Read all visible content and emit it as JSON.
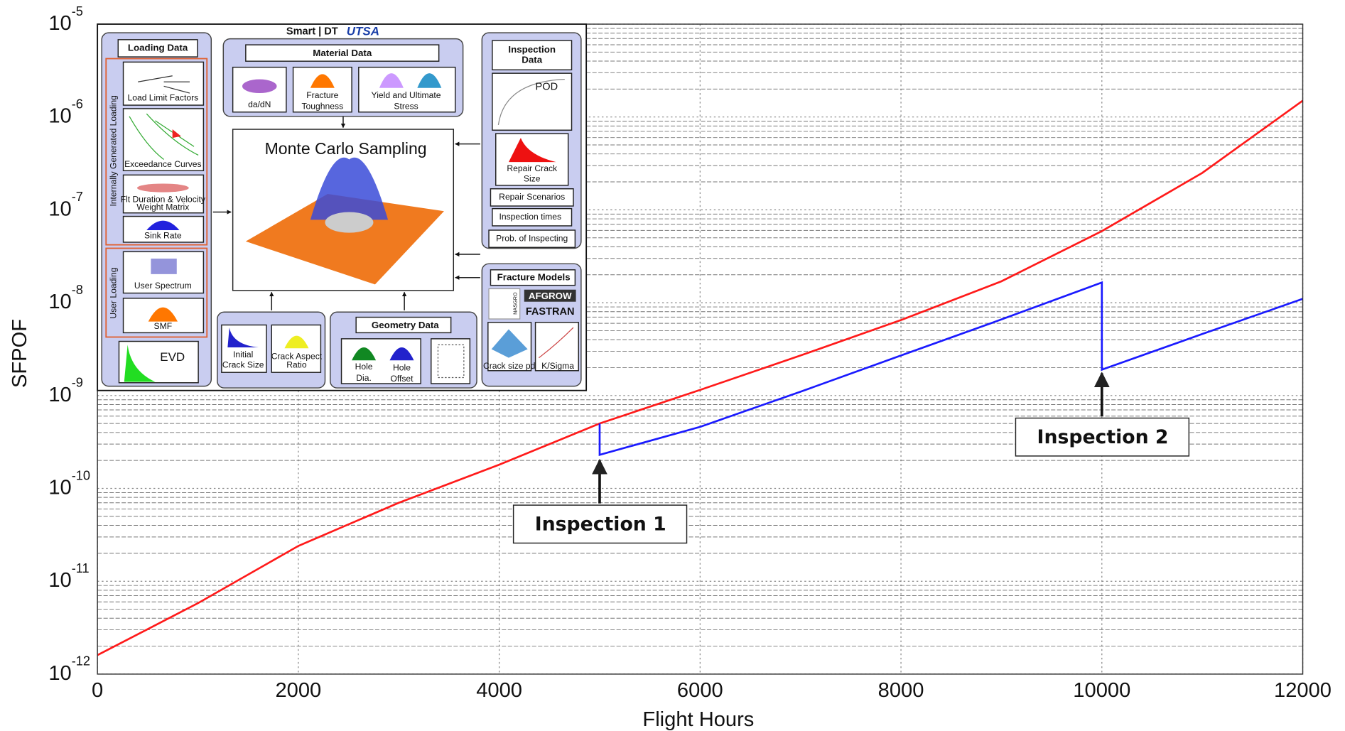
{
  "chart_data": {
    "type": "line",
    "xlabel": "Flight Hours",
    "ylabel": "SFPOF",
    "xlim": [
      0,
      12000
    ],
    "xticks": [
      0,
      2000,
      4000,
      6000,
      8000,
      10000,
      12000
    ],
    "ylim": [
      1e-12,
      1e-05
    ],
    "yscale": "log",
    "yticks": [
      {
        "value": 1e-12,
        "label": "10",
        "exponent": "-12"
      },
      {
        "value": 1e-11,
        "label": "10",
        "exponent": "-11"
      },
      {
        "value": 1e-10,
        "label": "10",
        "exponent": "-10"
      },
      {
        "value": 1e-09,
        "label": "10",
        "exponent": "-9"
      },
      {
        "value": 1e-08,
        "label": "10",
        "exponent": "-8"
      },
      {
        "value": 1e-07,
        "label": "10",
        "exponent": "-7"
      },
      {
        "value": 1e-06,
        "label": "10",
        "exponent": "-6"
      },
      {
        "value": 1e-05,
        "label": "10",
        "exponent": "-5"
      }
    ],
    "grid": true,
    "minor_grid": true,
    "series": [
      {
        "color": "#ff1a1a",
        "x": [
          0,
          1000,
          2000,
          3000,
          4000,
          5000,
          6000,
          7000,
          8000,
          9000,
          10000,
          11000,
          12000
        ],
        "values": [
          1.6e-12,
          5.8e-12,
          2.4e-11,
          7e-11,
          1.8e-10,
          5e-10,
          1.15e-09,
          2.7e-09,
          6.5e-09,
          1.7e-08,
          5.9e-08,
          2.5e-07,
          1.5e-06
        ]
      },
      {
        "color": "#1a1aff",
        "x": [
          5000,
          5000,
          6000,
          7000,
          8000,
          9000,
          10000,
          10000,
          11000,
          12000
        ],
        "values": [
          5e-10,
          2.3e-10,
          4.6e-10,
          1.1e-09,
          2.7e-09,
          6.6e-09,
          1.65e-08,
          1.9e-09,
          4.6e-09,
          1.1e-08
        ]
      }
    ],
    "annotations": [
      {
        "text": "Inspection 1",
        "x": 5000
      },
      {
        "text": "Inspection 2",
        "x": 10000
      }
    ]
  },
  "inset": {
    "header": "Smart | DT",
    "logo": "UTSA",
    "loading_data": "Loading Data",
    "internal_loading": "Internally Generated Loading",
    "load_limit": "Load Limit Factors",
    "exceedance": "Exceedance Curves",
    "flt_duration": [
      "Flt Duration & Velocity",
      "Weight  Matrix"
    ],
    "sink_rate": "Sink Rate",
    "user_loading": "User Loading",
    "user_spectrum": "User Spectrum",
    "smf": "SMF",
    "evd": "EVD",
    "material_data": "Material Data",
    "dadn": "da/dN",
    "fracture_toughness": [
      "Fracture",
      "Toughness"
    ],
    "yield": [
      "Yield and Ultimate",
      "Stress"
    ],
    "monte_carlo": "Monte Carlo Sampling",
    "initial_crack": [
      "Initial",
      "Crack Size"
    ],
    "aspect_ratio": [
      "Crack Aspect",
      "Ratio"
    ],
    "geometry_data": "Geometry Data",
    "hole_dia": [
      "Hole",
      "Dia."
    ],
    "hole_offset": [
      "Hole",
      "Offset"
    ],
    "inspection_data": [
      "Inspection",
      "Data"
    ],
    "pod": "POD",
    "repair_crack": [
      "Repair Crack",
      "Size"
    ],
    "repair_scenarios": "Repair Scenarios",
    "inspection_times": "Inspection times",
    "prob_inspecting": "Prob. of Inspecting",
    "fracture_models": "Fracture Models",
    "nasgro": "NASGRO",
    "afgrow": "AFGROW",
    "fastran": "FASTRAN",
    "crack_pdf": "Crack size pdf",
    "ksigma": "K/Sigma"
  }
}
